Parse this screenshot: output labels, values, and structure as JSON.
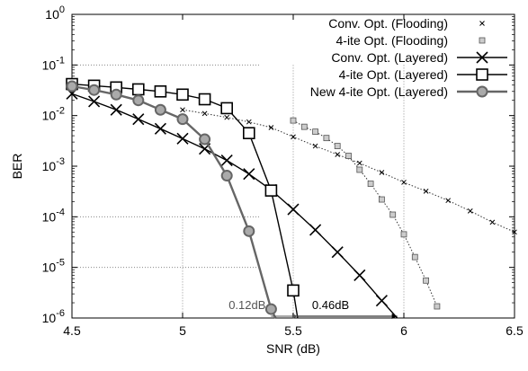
{
  "chart_data": {
    "type": "line",
    "title": "",
    "xlabel": "SNR (dB)",
    "ylabel": "BER",
    "xlim": [
      4.5,
      6.5
    ],
    "ylim_exponent": [
      -6,
      0
    ],
    "y_scale": "log",
    "x_ticks": [
      "4.5",
      "5",
      "5.5",
      "6",
      "6.5"
    ],
    "y_ticks": [
      {
        "base": "10",
        "exp": "0"
      },
      {
        "base": "10",
        "exp": "-1"
      },
      {
        "base": "10",
        "exp": "-2"
      },
      {
        "base": "10",
        "exp": "-3"
      },
      {
        "base": "10",
        "exp": "-4"
      },
      {
        "base": "10",
        "exp": "-5"
      },
      {
        "base": "10",
        "exp": "-6"
      }
    ],
    "legend_position": "top-right",
    "series": [
      {
        "name": "Conv. Opt. (Flooding)",
        "style": "dotted",
        "marker": "x-small",
        "color": "#000000",
        "points": [
          [
            5.0,
            0.013
          ],
          [
            5.1,
            0.011
          ],
          [
            5.2,
            0.0092
          ],
          [
            5.3,
            0.0075
          ],
          [
            5.4,
            0.0058
          ],
          [
            5.5,
            0.0038
          ],
          [
            5.6,
            0.0025
          ],
          [
            5.7,
            0.0017
          ],
          [
            5.8,
            0.00115
          ],
          [
            5.9,
            0.00075
          ],
          [
            6.0,
            0.00048
          ],
          [
            6.1,
            0.00032
          ],
          [
            6.2,
            0.00021
          ],
          [
            6.3,
            0.00013
          ],
          [
            6.4,
            7.8e-05
          ],
          [
            6.5,
            5e-05
          ]
        ]
      },
      {
        "name": "4-ite Opt. (Flooding)",
        "style": "dotted",
        "marker": "square-small",
        "color": "#000000",
        "points": [
          [
            5.5,
            0.008
          ],
          [
            5.55,
            0.006
          ],
          [
            5.6,
            0.0048
          ],
          [
            5.65,
            0.0036
          ],
          [
            5.7,
            0.0025
          ],
          [
            5.75,
            0.0016
          ],
          [
            5.8,
            0.00085
          ],
          [
            5.85,
            0.00045
          ],
          [
            5.9,
            0.00022
          ],
          [
            5.95,
            0.00011
          ],
          [
            6.0,
            4.5e-05
          ],
          [
            6.05,
            1.6e-05
          ],
          [
            6.1,
            5.5e-06
          ],
          [
            6.15,
            1.7e-06
          ]
        ]
      },
      {
        "name": "Conv. Opt. (Layered)",
        "style": "solid",
        "marker": "x",
        "color": "#000000",
        "points": [
          [
            4.5,
            0.027
          ],
          [
            4.6,
            0.019
          ],
          [
            4.7,
            0.013
          ],
          [
            4.8,
            0.0085
          ],
          [
            4.9,
            0.0055
          ],
          [
            5.0,
            0.0035
          ],
          [
            5.1,
            0.0022
          ],
          [
            5.2,
            0.0013
          ],
          [
            5.3,
            0.0007
          ],
          [
            5.4,
            0.00034
          ],
          [
            5.5,
            0.00014
          ],
          [
            5.6,
            5.5e-05
          ],
          [
            5.7,
            2e-05
          ],
          [
            5.8,
            7e-06
          ],
          [
            5.9,
            2.2e-06
          ],
          [
            5.97,
            1e-06
          ]
        ]
      },
      {
        "name": "4-ite Opt. (Layered)",
        "style": "solid",
        "marker": "square",
        "color": "#000000",
        "points": [
          [
            4.5,
            0.042
          ],
          [
            4.6,
            0.039
          ],
          [
            4.7,
            0.036
          ],
          [
            4.8,
            0.033
          ],
          [
            4.9,
            0.03
          ],
          [
            5.0,
            0.026
          ],
          [
            5.1,
            0.021
          ],
          [
            5.2,
            0.014
          ],
          [
            5.3,
            0.0045
          ],
          [
            5.4,
            0.00033
          ],
          [
            5.5,
            3.5e-06
          ],
          [
            5.52,
            1e-06
          ]
        ]
      },
      {
        "name": "New 4-ite Opt. (Layered)",
        "style": "solid",
        "marker": "circle",
        "color": "#666666",
        "points": [
          [
            4.5,
            0.038
          ],
          [
            4.6,
            0.032
          ],
          [
            4.7,
            0.026
          ],
          [
            4.8,
            0.02
          ],
          [
            4.9,
            0.013
          ],
          [
            5.0,
            0.0085
          ],
          [
            5.1,
            0.0034
          ],
          [
            5.2,
            0.00065
          ],
          [
            5.3,
            5.2e-05
          ],
          [
            5.4,
            1.5e-06
          ],
          [
            5.42,
            1e-06
          ]
        ]
      }
    ],
    "annotations": [
      {
        "text": "0.12dB",
        "x_from": 5.4,
        "x_to": 5.52,
        "y": 1e-06,
        "color": "#555555"
      },
      {
        "text": "0.46dB",
        "x_from": 5.52,
        "x_to": 5.97,
        "y": 1e-06,
        "color": "#000000"
      }
    ],
    "guides": [
      {
        "axis": "x",
        "value": 5.0,
        "y_from": 0.0001,
        "y_to": 1e-06
      },
      {
        "axis": "x",
        "value": 5.5,
        "y_from": 0.1,
        "y_to": 1e-06
      },
      {
        "axis": "x",
        "value": 6.0,
        "y_from": 0.1,
        "y_to": 1e-06
      },
      {
        "axis": "y",
        "value": 0.1,
        "x_from": 4.5,
        "x_to": 5.35
      },
      {
        "axis": "y",
        "value": 0.0001,
        "x_from": 4.5,
        "x_to": 5.35
      },
      {
        "axis": "y",
        "value": 1e-05,
        "x_from": 4.5,
        "x_to": 5.35
      }
    ]
  }
}
